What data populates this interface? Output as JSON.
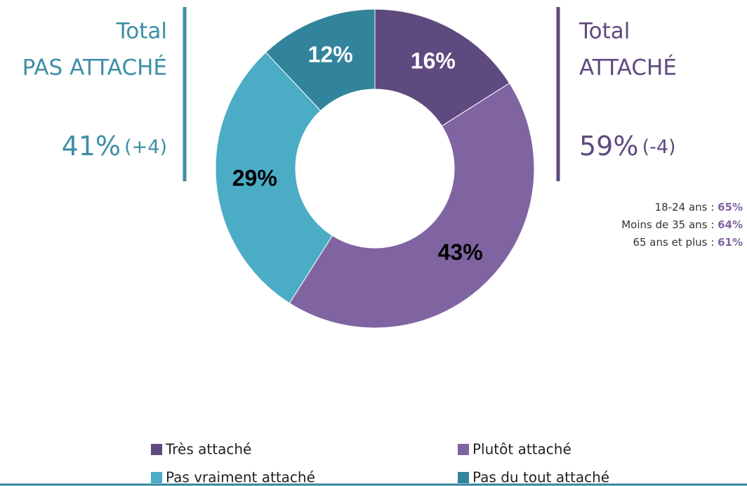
{
  "chart_data": {
    "type": "donut",
    "categories": [
      "Très attaché",
      "Plutôt attaché",
      "Pas vraiment attaché",
      "Pas du tout attaché"
    ],
    "values": [
      16,
      43,
      29,
      12
    ],
    "value_labels": [
      "16%",
      "43%",
      "29%",
      "12%"
    ],
    "colors": [
      "#5f4a7f",
      "#8064a2",
      "#4bacc6",
      "#31849b"
    ],
    "label_colors": [
      "#ffffff",
      "#000000",
      "#000000",
      "#ffffff"
    ],
    "annotations": {
      "left": {
        "title": "Total",
        "subtitle": "PAS ATTACHÉ",
        "value": "41%",
        "change": "(+4)"
      },
      "right": {
        "title": "Total",
        "subtitle": "ATTACHÉ",
        "value": "59%",
        "change": "(-4)"
      },
      "breakdown": [
        {
          "label": "18-24 ans :",
          "value": "65%"
        },
        {
          "label": "Moins de 35 ans :",
          "value": "64%"
        },
        {
          "label": "65 ans et plus :",
          "value": "61%"
        }
      ]
    }
  }
}
